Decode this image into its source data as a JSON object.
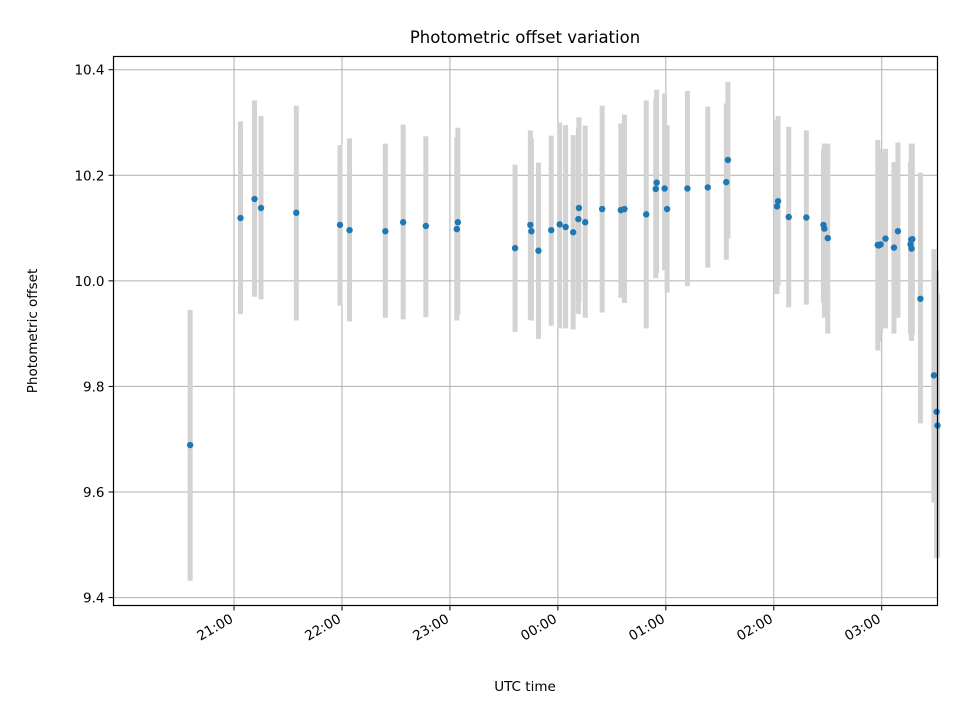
{
  "chart_data": {
    "type": "scatter",
    "title": "Photometric offset variation",
    "xlabel": "UTC time",
    "ylabel": "Photometric offset",
    "x_unit": "minutes relative to 00:00 UTC",
    "xlim": [
      -247,
      211
    ],
    "ylim": [
      9.385,
      10.425
    ],
    "x_ticks": [
      {
        "value": -180,
        "label": "21:00"
      },
      {
        "value": -120,
        "label": "22:00"
      },
      {
        "value": -60,
        "label": "23:00"
      },
      {
        "value": 0,
        "label": "00:00"
      },
      {
        "value": 60,
        "label": "01:00"
      },
      {
        "value": 120,
        "label": "02:00"
      },
      {
        "value": 180,
        "label": "03:00"
      }
    ],
    "y_ticks": [
      {
        "value": 9.4,
        "label": "9.4"
      },
      {
        "value": 9.6,
        "label": "9.6"
      },
      {
        "value": 9.8,
        "label": "9.8"
      },
      {
        "value": 10.0,
        "label": "10.0"
      },
      {
        "value": 10.2,
        "label": "10.2"
      },
      {
        "value": 10.4,
        "label": "10.4"
      }
    ],
    "grid": true,
    "point_color": "#1f77b4",
    "errorbar_color": "#d3d3d3",
    "series": [
      {
        "x": [
          -204.4,
          -176.4,
          -168.6,
          -165.0,
          -145.4,
          -121.1,
          -115.8,
          -95.9,
          -86.0,
          -73.4,
          -56.2,
          -55.6,
          -23.8,
          -15.3,
          -14.7,
          -10.8,
          -3.7,
          1.0,
          4.3,
          8.5,
          11.4,
          11.7,
          15.2,
          24.6,
          35.0,
          37.0,
          49.1,
          54.4,
          54.9,
          59.3,
          60.7,
          72.0,
          83.3,
          93.6,
          94.5,
          121.8,
          122.4,
          128.3,
          138.1,
          147.6,
          148.1,
          150.0,
          177.8,
          178.3,
          179.4,
          182.1,
          186.8,
          189.0,
          196.0,
          196.4,
          196.6,
          197.0,
          201.5,
          209.0,
          210.5,
          211.0
        ],
        "y": [
          9.689,
          10.119,
          10.155,
          10.138,
          10.129,
          10.106,
          10.096,
          10.094,
          10.111,
          10.104,
          10.098,
          10.111,
          10.062,
          10.106,
          10.094,
          10.057,
          10.096,
          10.107,
          10.102,
          10.092,
          10.117,
          10.138,
          10.111,
          10.136,
          10.134,
          10.136,
          10.126,
          10.174,
          10.186,
          10.175,
          10.136,
          10.175,
          10.177,
          10.187,
          10.229,
          10.141,
          10.151,
          10.121,
          10.12,
          10.106,
          10.099,
          10.081,
          10.068,
          10.067,
          10.069,
          10.08,
          10.063,
          10.094,
          10.069,
          10.078,
          10.061,
          10.079,
          9.966,
          9.821,
          9.752,
          9.726
        ],
        "err_low": [
          9.432,
          9.937,
          9.97,
          9.965,
          9.925,
          9.953,
          9.923,
          9.93,
          9.927,
          9.931,
          9.925,
          9.935,
          9.903,
          9.926,
          9.925,
          9.89,
          9.915,
          9.91,
          9.91,
          9.908,
          9.937,
          9.96,
          9.93,
          9.94,
          9.968,
          9.958,
          9.91,
          10.005,
          10.015,
          10.02,
          9.978,
          9.99,
          10.025,
          10.04,
          10.08,
          9.975,
          9.99,
          9.95,
          9.955,
          9.958,
          9.93,
          9.9,
          9.868,
          9.885,
          9.9,
          9.91,
          9.9,
          9.93,
          9.9,
          9.893,
          9.886,
          9.898,
          9.73,
          9.58,
          9.475,
          9.475
        ],
        "err_high": [
          9.945,
          10.302,
          10.342,
          10.312,
          10.332,
          10.257,
          10.27,
          10.26,
          10.296,
          10.274,
          10.272,
          10.29,
          10.22,
          10.285,
          10.27,
          10.224,
          10.275,
          10.3,
          10.295,
          10.276,
          10.29,
          10.31,
          10.294,
          10.332,
          10.298,
          10.315,
          10.342,
          10.345,
          10.362,
          10.355,
          10.295,
          10.36,
          10.33,
          10.336,
          10.377,
          10.305,
          10.312,
          10.292,
          10.285,
          10.25,
          10.26,
          10.26,
          10.267,
          10.25,
          10.245,
          10.25,
          10.225,
          10.262,
          10.225,
          10.26,
          10.236,
          10.26,
          10.205,
          10.06,
          10.02,
          9.975
        ]
      }
    ]
  }
}
